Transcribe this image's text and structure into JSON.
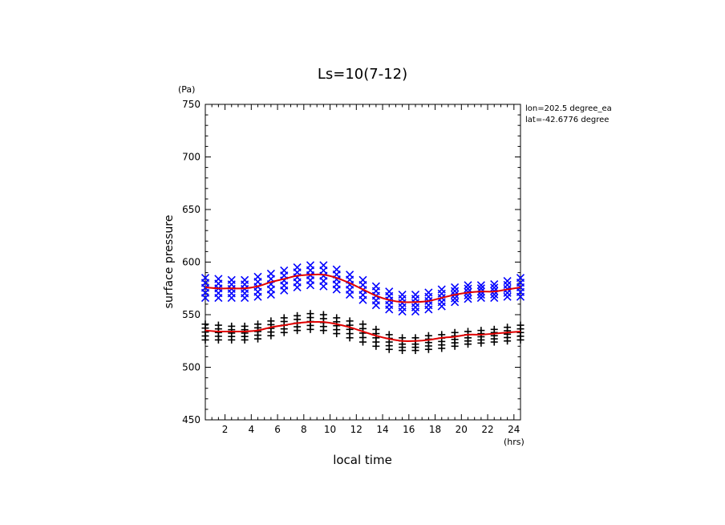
{
  "chart_data": {
    "type": "scatter",
    "title": "Ls=10(7-12)",
    "xlabel": "local time",
    "ylabel": "surface pressure",
    "x_unit": "(hrs)",
    "y_unit": "(Pa)",
    "xlim": [
      0.5,
      24.5
    ],
    "ylim": [
      450,
      750
    ],
    "x_ticks": [
      2,
      4,
      6,
      8,
      10,
      12,
      14,
      16,
      18,
      20,
      22,
      24
    ],
    "y_ticks": [
      450,
      500,
      550,
      600,
      650,
      700,
      750
    ],
    "annotation_lines": [
      "lon=202.5 degree_ea",
      "lat=-42.6776 degree"
    ],
    "grid": false,
    "series": [
      {
        "marker": "x",
        "color": "#0000ff",
        "x": [
          0.5,
          1.5,
          2.5,
          3.5,
          4.5,
          5.5,
          6.5,
          7.5,
          8.5,
          9.5,
          10.5,
          11.5,
          12.5,
          13.5,
          14.5,
          15.5,
          16.5,
          17.5,
          18.5,
          19.5,
          20.5,
          21.5,
          22.5,
          23.5,
          24.5
        ],
        "y_min": [
          566,
          566,
          566,
          566,
          567,
          569,
          573,
          576,
          578,
          577,
          574,
          569,
          564,
          559,
          555,
          553,
          553,
          555,
          558,
          562,
          565,
          566,
          566,
          567,
          567
        ],
        "y_max": [
          585,
          584,
          583,
          583,
          586,
          589,
          592,
          595,
          597,
          597,
          593,
          588,
          583,
          577,
          572,
          569,
          569,
          571,
          574,
          576,
          578,
          578,
          579,
          582,
          585
        ]
      },
      {
        "marker": "+",
        "color": "#000000",
        "x": [
          0.5,
          1.5,
          2.5,
          3.5,
          4.5,
          5.5,
          6.5,
          7.5,
          8.5,
          9.5,
          10.5,
          11.5,
          12.5,
          13.5,
          14.5,
          15.5,
          16.5,
          17.5,
          18.5,
          19.5,
          20.5,
          21.5,
          22.5,
          23.5,
          24.5
        ],
        "y_min": [
          526,
          526,
          526,
          526,
          527,
          530,
          533,
          535,
          536,
          535,
          532,
          528,
          524,
          520,
          517,
          516,
          516,
          517,
          518,
          520,
          522,
          523,
          524,
          525,
          526
        ],
        "y_max": [
          541,
          540,
          539,
          539,
          541,
          544,
          547,
          549,
          551,
          550,
          547,
          544,
          541,
          536,
          531,
          528,
          528,
          530,
          531,
          533,
          534,
          535,
          536,
          538,
          540
        ]
      },
      {
        "marker": "line",
        "color": "#e00000",
        "x": [
          0.5,
          1.5,
          2.5,
          3.5,
          4.5,
          5.5,
          6.5,
          7.5,
          8.5,
          9.5,
          10.5,
          11.5,
          12.5,
          13.5,
          14.5,
          15.5,
          16.5,
          17.5,
          18.5,
          19.5,
          20.5,
          21.5,
          22.5,
          23.5,
          24.5
        ],
        "y": [
          576,
          575,
          575,
          575,
          577,
          581,
          584,
          587,
          588,
          588,
          585,
          580,
          574,
          568,
          564,
          562,
          562,
          563,
          566,
          569,
          571,
          572,
          572,
          574,
          576
        ]
      },
      {
        "marker": "line",
        "color": "#e00000",
        "x": [
          0.5,
          1.5,
          2.5,
          3.5,
          4.5,
          5.5,
          6.5,
          7.5,
          8.5,
          9.5,
          10.5,
          11.5,
          12.5,
          13.5,
          14.5,
          15.5,
          16.5,
          17.5,
          18.5,
          19.5,
          20.5,
          21.5,
          22.5,
          23.5,
          24.5
        ],
        "y": [
          535,
          534,
          534,
          534,
          535,
          538,
          540,
          542,
          543,
          543,
          541,
          538,
          534,
          530,
          527,
          525,
          525,
          526,
          528,
          529,
          531,
          531,
          532,
          533,
          534
        ]
      }
    ]
  }
}
